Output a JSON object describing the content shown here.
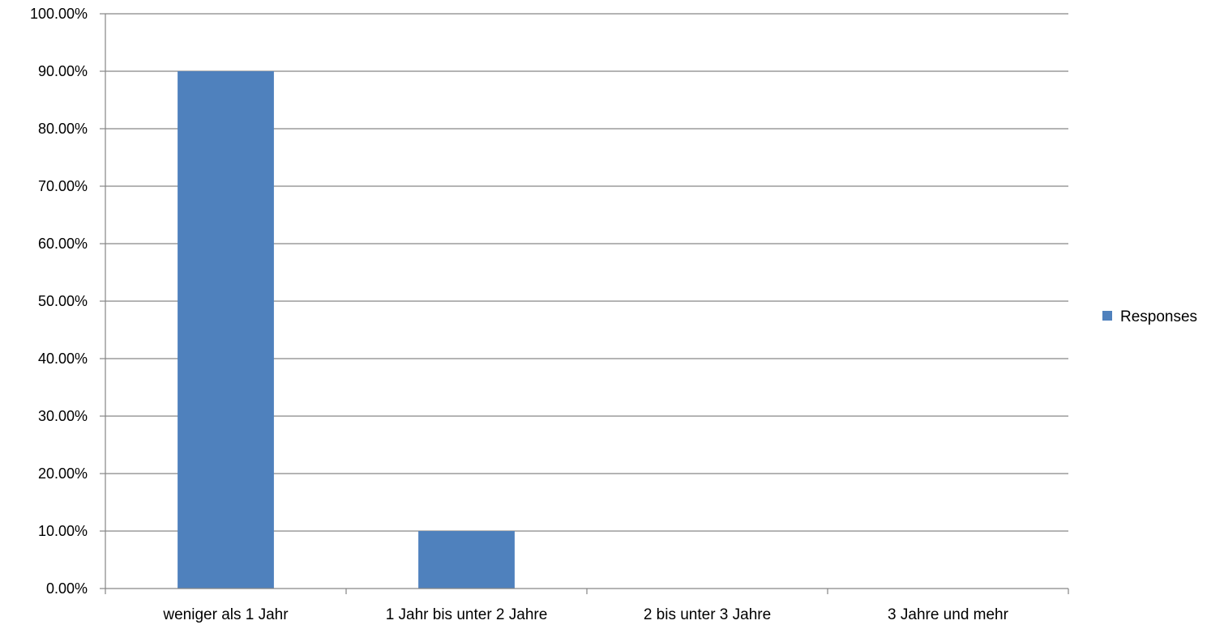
{
  "chart_data": {
    "type": "bar",
    "categories": [
      "weniger als 1 Jahr",
      "1 Jahr bis unter 2 Jahre",
      "2 bis unter 3 Jahre",
      "3 Jahre und mehr"
    ],
    "series": [
      {
        "name": "Responses",
        "values": [
          90,
          10,
          0,
          0
        ],
        "color": "#4f81bd"
      }
    ],
    "ylim": [
      0,
      100
    ],
    "yticks": [
      0,
      10,
      20,
      30,
      40,
      50,
      60,
      70,
      80,
      90,
      100
    ],
    "ytick_labels": [
      "0.00%",
      "10.00%",
      "20.00%",
      "30.00%",
      "40.00%",
      "50.00%",
      "60.00%",
      "70.00%",
      "80.00%",
      "90.00%",
      "100.00%"
    ],
    "grid": true,
    "legend_position": "right",
    "title": "",
    "xlabel": "",
    "ylabel": ""
  }
}
